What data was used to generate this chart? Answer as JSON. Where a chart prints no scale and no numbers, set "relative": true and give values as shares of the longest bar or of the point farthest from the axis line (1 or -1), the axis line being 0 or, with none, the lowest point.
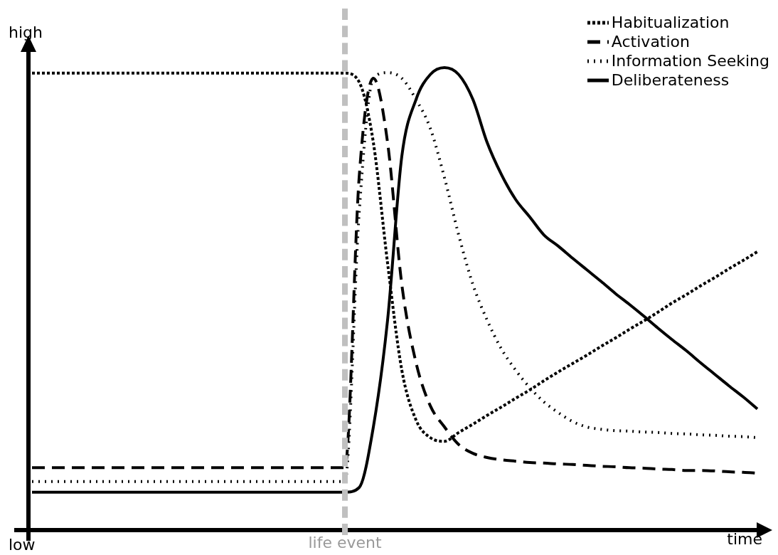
{
  "chart_data": {
    "type": "line",
    "relative": true,
    "xlabel": "time",
    "annotations": [
      "high",
      "low",
      "life event"
    ],
    "categories": [
      null,
      null,
      null,
      null,
      null,
      null,
      null,
      null,
      null,
      null,
      null,
      null,
      null,
      null,
      null,
      null,
      null,
      null,
      null,
      null,
      null,
      null,
      null,
      null,
      null,
      null,
      null,
      null,
      null,
      null,
      null,
      null,
      null,
      null,
      null,
      null,
      null,
      null,
      null,
      null,
      null,
      null,
      null,
      null,
      null,
      null,
      null,
      null,
      null,
      null,
      null,
      null
    ],
    "legend": "top right",
    "marker": "none",
    "series": [
      {
        "name": "Habitualization",
        "color": "#000000",
        "line_style": "dotted",
        "values": [
          0.988,
          0.988,
          0.988,
          0.988,
          0.988,
          0.988,
          0.988,
          0.988,
          0.988,
          0.988,
          0.988,
          0.988,
          0.988,
          0.988,
          0.988,
          0.988,
          0.988,
          0.988,
          0.988,
          0.988,
          0.988,
          0.988,
          0.988,
          0.969,
          0.838,
          0.577,
          0.346,
          0.238,
          0.2,
          0.192,
          0.211,
          0.229,
          0.248,
          0.266,
          0.285,
          0.303,
          0.323,
          0.342,
          0.36,
          0.378,
          0.397,
          0.415,
          0.434,
          0.452,
          0.471,
          0.491,
          0.509,
          0.528,
          0.546,
          0.565,
          0.583,
          0.602
        ]
      },
      {
        "name": "Activation",
        "color": "#000000",
        "line_style": "dashed",
        "values": [
          0.135,
          0.135,
          0.135,
          0.135,
          0.135,
          0.135,
          0.135,
          0.135,
          0.135,
          0.135,
          0.135,
          0.135,
          0.135,
          0.135,
          0.135,
          0.135,
          0.135,
          0.135,
          0.135,
          0.135,
          0.135,
          0.135,
          0.135,
          0.762,
          0.977,
          0.838,
          0.531,
          0.362,
          0.269,
          0.223,
          0.185,
          0.166,
          0.157,
          0.152,
          0.149,
          0.146,
          0.145,
          0.143,
          0.142,
          0.14,
          0.138,
          0.137,
          0.135,
          0.134,
          0.132,
          0.131,
          0.129,
          0.129,
          0.128,
          0.126,
          0.125,
          0.123
        ]
      },
      {
        "name": "Information Seeking",
        "color": "#000000",
        "line_style": "dotted",
        "values": [
          0.105,
          0.105,
          0.105,
          0.105,
          0.105,
          0.105,
          0.105,
          0.105,
          0.105,
          0.105,
          0.105,
          0.105,
          0.105,
          0.105,
          0.105,
          0.105,
          0.105,
          0.105,
          0.105,
          0.105,
          0.105,
          0.105,
          0.105,
          0.685,
          0.977,
          0.989,
          0.977,
          0.931,
          0.869,
          0.762,
          0.638,
          0.531,
          0.454,
          0.392,
          0.346,
          0.308,
          0.277,
          0.254,
          0.235,
          0.223,
          0.218,
          0.215,
          0.214,
          0.212,
          0.211,
          0.209,
          0.208,
          0.206,
          0.205,
          0.203,
          0.202,
          0.2
        ]
      },
      {
        "name": "Deliberateness",
        "color": "#000000",
        "line_style": "solid",
        "values": [
          0.082,
          0.082,
          0.082,
          0.082,
          0.082,
          0.082,
          0.082,
          0.082,
          0.082,
          0.082,
          0.082,
          0.082,
          0.082,
          0.082,
          0.082,
          0.082,
          0.082,
          0.082,
          0.082,
          0.082,
          0.082,
          0.082,
          0.082,
          0.092,
          0.223,
          0.454,
          0.808,
          0.931,
          0.985,
          1,
          0.985,
          0.931,
          0.838,
          0.769,
          0.715,
          0.677,
          0.638,
          0.614,
          0.588,
          0.563,
          0.538,
          0.512,
          0.488,
          0.463,
          0.437,
          0.412,
          0.388,
          0.362,
          0.337,
          0.312,
          0.288,
          0.262
        ]
      }
    ]
  }
}
